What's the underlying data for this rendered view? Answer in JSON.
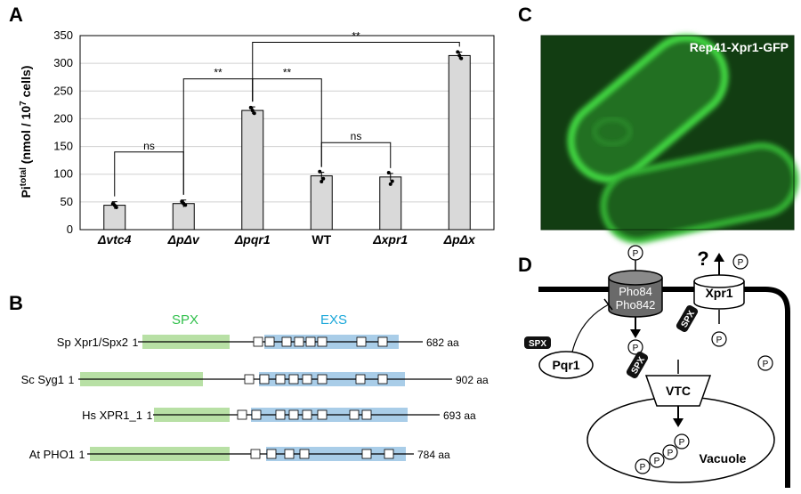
{
  "panels": {
    "a": "A",
    "b": "B",
    "c": "C",
    "d": "D"
  },
  "chart_data": {
    "type": "bar",
    "categories": [
      "Δvtc4",
      "ΔpΔv",
      "Δpqr1",
      "WT",
      "Δxpr1",
      "ΔpΔx"
    ],
    "values": [
      44,
      47,
      215,
      97,
      95,
      314
    ],
    "ylabel_main": "Pi",
    "ylabel_sup": "total",
    "ylabel_rest": " (nmol / 10",
    "ylabel_exp": "7",
    "ylabel_end": " cells)",
    "ylim": [
      0,
      350
    ],
    "yticks": [
      0,
      50,
      100,
      150,
      200,
      250,
      300,
      350
    ],
    "grid": true,
    "bar_color": "#d9d9d9",
    "comparisons": [
      {
        "from": 0,
        "to": 1,
        "label": "ns",
        "y": 140
      },
      {
        "from": 1,
        "to": 2,
        "label": "**",
        "y": 272
      },
      {
        "from": 2,
        "to": 3,
        "label": "**",
        "y": 272
      },
      {
        "from": 3,
        "to": 4,
        "label": "ns",
        "y": 157
      },
      {
        "from": 2,
        "to": 5,
        "label": "**",
        "y": 338
      }
    ]
  },
  "domains": {
    "spx_label": "SPX",
    "exs_label": "EXS",
    "spx_color": "#b8e0a5",
    "exs_color": "#a9cde8",
    "spx_text_color": "#2fbf4a",
    "exs_text_color": "#1aa7d9",
    "start_label": "1",
    "proteins": [
      {
        "name": "Sp Xpr1/Spx2",
        "length": "682 aa"
      },
      {
        "name": "Sc Syg1",
        "length": "902 aa"
      },
      {
        "name": "Hs XPR1_1",
        "length": "693 aa"
      },
      {
        "name": "At PHO1",
        "length": "784 aa"
      }
    ]
  },
  "micrograph": {
    "label": "Rep41-Xpr1-GFP"
  },
  "model": {
    "pho84": "Pho84",
    "pho842": "Pho842",
    "xpr1": "Xpr1",
    "pqr1": "Pqr1",
    "vtc": "VTC",
    "vacuole": "Vacuole",
    "spx_tag": "SPX",
    "p": "P",
    "question": "?"
  }
}
